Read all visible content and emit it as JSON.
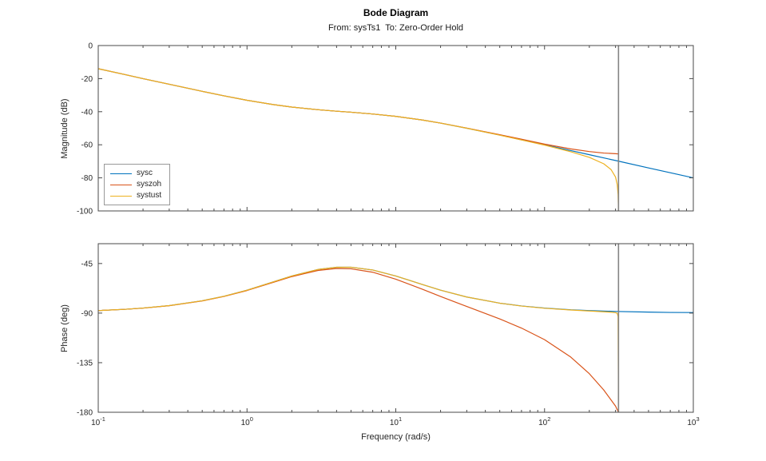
{
  "figure": {
    "title": "Bode Diagram",
    "subtitle": "From: sysTs1  To: Zero-Order Hold"
  },
  "chart_data": [
    {
      "type": "line",
      "name": "magnitude-plot",
      "ylabel": "Magnitude (dB)",
      "xscale": "log",
      "xlim": [
        0.1,
        1000
      ],
      "ylim": [
        -100,
        0
      ],
      "yticks": [
        {
          "v": 0,
          "label": "0"
        },
        {
          "v": -20,
          "label": "-20"
        },
        {
          "v": -40,
          "label": "-40"
        },
        {
          "v": -60,
          "label": "-60"
        },
        {
          "v": -80,
          "label": "-80"
        },
        {
          "v": -100,
          "label": "-100"
        }
      ],
      "xticks": [
        {
          "v": 0.1,
          "base": "10",
          "exp": "-1"
        },
        {
          "v": 1,
          "base": "10",
          "exp": "0"
        },
        {
          "v": 10,
          "base": "10",
          "exp": "1"
        },
        {
          "v": 100,
          "base": "10",
          "exp": "2"
        },
        {
          "v": 1000,
          "base": "10",
          "exp": "3"
        }
      ],
      "vline": {
        "x": 314.159,
        "color": "#848484",
        "meaning": "nyquist-frequency-line"
      },
      "legend": {
        "position": "west-inside",
        "entries": [
          "sysc",
          "syszoh",
          "systust"
        ]
      },
      "grid": false,
      "series": [
        {
          "name": "sysc",
          "color": "#0072BD",
          "x": [
            0.1,
            0.15,
            0.2,
            0.3,
            0.5,
            0.7,
            1,
            1.5,
            2,
            3,
            4,
            5,
            7,
            10,
            15,
            20,
            30,
            50,
            70,
            100,
            150,
            200,
            300,
            500,
            700,
            1000
          ],
          "y": [
            -14.0,
            -17.5,
            -20.0,
            -23.4,
            -27.7,
            -30.4,
            -33.1,
            -35.7,
            -37.2,
            -38.8,
            -39.7,
            -40.3,
            -41.4,
            -42.8,
            -45.0,
            -46.9,
            -50.0,
            -54.1,
            -57.0,
            -60.0,
            -63.5,
            -66.0,
            -69.5,
            -74.0,
            -76.9,
            -80.0
          ]
        },
        {
          "name": "syszoh",
          "color": "#D95319",
          "x": [
            0.1,
            0.15,
            0.2,
            0.3,
            0.5,
            0.7,
            1,
            1.5,
            2,
            3,
            4,
            5,
            7,
            10,
            15,
            20,
            30,
            50,
            70,
            100,
            150,
            200,
            250,
            300,
            314
          ],
          "y": [
            -14.0,
            -17.5,
            -20.0,
            -23.4,
            -27.7,
            -30.4,
            -33.1,
            -35.7,
            -37.2,
            -38.8,
            -39.7,
            -40.3,
            -41.4,
            -42.8,
            -45.0,
            -46.9,
            -49.9,
            -53.9,
            -56.6,
            -59.6,
            -62.5,
            -64.1,
            -65.0,
            -65.4,
            -65.5
          ]
        },
        {
          "name": "systust",
          "color": "#EDB120",
          "x": [
            0.1,
            0.15,
            0.2,
            0.3,
            0.5,
            0.7,
            1,
            1.5,
            2,
            3,
            4,
            5,
            7,
            10,
            15,
            20,
            30,
            50,
            70,
            100,
            150,
            200,
            250,
            280,
            300,
            308,
            312,
            314
          ],
          "y": [
            -14.0,
            -17.5,
            -20.0,
            -23.4,
            -27.7,
            -30.4,
            -33.1,
            -35.7,
            -37.2,
            -38.8,
            -39.7,
            -40.3,
            -41.4,
            -42.8,
            -45.0,
            -46.9,
            -50.0,
            -54.2,
            -57.1,
            -60.2,
            -64.2,
            -67.6,
            -71.5,
            -75.0,
            -79.5,
            -84.0,
            -90.0,
            -100.0
          ]
        }
      ]
    },
    {
      "type": "line",
      "name": "phase-plot",
      "ylabel": "Phase (deg)",
      "xlabel": "Frequency (rad/s)",
      "xscale": "log",
      "xlim": [
        0.1,
        1000
      ],
      "ylim": [
        -180,
        -27
      ],
      "yticks": [
        {
          "v": -45,
          "label": "-45"
        },
        {
          "v": -90,
          "label": "-90"
        },
        {
          "v": -135,
          "label": "-135"
        },
        {
          "v": -180,
          "label": "-180"
        }
      ],
      "xticks": [
        {
          "v": 0.1,
          "base": "10",
          "exp": "-1"
        },
        {
          "v": 1,
          "base": "10",
          "exp": "0"
        },
        {
          "v": 10,
          "base": "10",
          "exp": "1"
        },
        {
          "v": 100,
          "base": "10",
          "exp": "2"
        },
        {
          "v": 1000,
          "base": "10",
          "exp": "3"
        }
      ],
      "vline": {
        "x": 314.159,
        "color": "#848484",
        "meaning": "nyquist-frequency-line"
      },
      "grid": false,
      "series": [
        {
          "name": "sysc",
          "color": "#0072BD",
          "x": [
            0.1,
            0.15,
            0.2,
            0.3,
            0.5,
            0.7,
            1,
            1.5,
            2,
            3,
            4,
            5,
            7,
            10,
            15,
            20,
            30,
            50,
            70,
            100,
            150,
            200,
            300,
            500,
            700,
            1000
          ],
          "y": [
            -87.7,
            -86.6,
            -85.4,
            -83.2,
            -78.8,
            -74.7,
            -69.2,
            -61.7,
            -56.3,
            -50.4,
            -48.4,
            -48.4,
            -50.9,
            -56.3,
            -63.9,
            -69.2,
            -75.4,
            -81.0,
            -83.5,
            -85.4,
            -87.0,
            -87.7,
            -88.5,
            -89.1,
            -89.4,
            -89.5
          ]
        },
        {
          "name": "syszoh",
          "color": "#D95319",
          "x": [
            0.1,
            0.15,
            0.2,
            0.3,
            0.5,
            0.7,
            1,
            1.5,
            2,
            3,
            4,
            5,
            7,
            10,
            15,
            20,
            30,
            50,
            70,
            100,
            150,
            200,
            250,
            300,
            314
          ],
          "y": [
            -87.7,
            -86.6,
            -85.5,
            -83.3,
            -79.0,
            -74.9,
            -69.5,
            -62.1,
            -56.9,
            -51.3,
            -49.5,
            -49.8,
            -52.9,
            -59.2,
            -68.2,
            -74.9,
            -84.0,
            -95.3,
            -103.6,
            -114.1,
            -129.9,
            -145.0,
            -159.8,
            -174.4,
            -180.0
          ]
        },
        {
          "name": "systust",
          "color": "#EDB120",
          "x": [
            0.1,
            0.15,
            0.2,
            0.3,
            0.5,
            0.7,
            1,
            1.5,
            2,
            3,
            4,
            5,
            7,
            10,
            15,
            20,
            30,
            50,
            70,
            100,
            150,
            200,
            250,
            280,
            300,
            308,
            312,
            314
          ],
          "y": [
            -87.7,
            -86.6,
            -85.4,
            -83.2,
            -78.8,
            -74.7,
            -69.2,
            -61.7,
            -56.3,
            -50.4,
            -48.4,
            -48.4,
            -50.9,
            -56.3,
            -63.9,
            -69.2,
            -75.4,
            -81.0,
            -83.6,
            -85.6,
            -87.2,
            -88.1,
            -88.8,
            -89.2,
            -89.6,
            -90.2,
            -93.0,
            -180.0
          ]
        }
      ]
    }
  ]
}
